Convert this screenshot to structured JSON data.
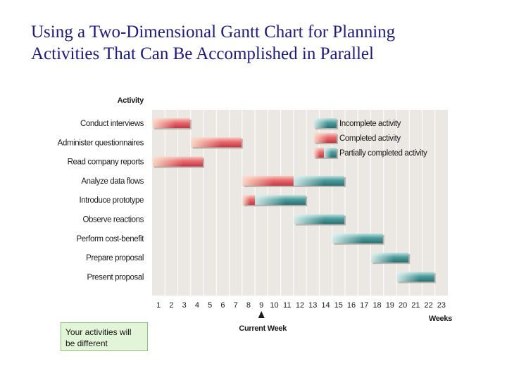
{
  "slide": {
    "title_line1": "Using a Two-Dimensional Gantt Chart for Planning",
    "title_line2": "Activities That Can Be Accomplished in Parallel",
    "note": "Your activities will be different"
  },
  "colors": {
    "completed": "#e25560",
    "incomplete": "#3d8f90",
    "grid_bg": "#ebe8e4",
    "grid_line": "#ffffff",
    "title": "#1a1a8c"
  },
  "chart_data": {
    "type": "gantt",
    "header": "Activity",
    "xlabel": "Weeks",
    "marker_label": "Current Week",
    "current_week": 9,
    "weeks": [
      "1",
      "2",
      "3",
      "4",
      "5",
      "6",
      "7",
      "8",
      "9",
      "10",
      "11",
      "12",
      "13",
      "14",
      "15",
      "16",
      "17",
      "18",
      "19",
      "20",
      "21",
      "22",
      "23"
    ],
    "activities": [
      {
        "name": "Conduct interviews",
        "start": 1,
        "end": 3,
        "completed_until": 3
      },
      {
        "name": "Administer questionnaires",
        "start": 4,
        "end": 7,
        "completed_until": 7
      },
      {
        "name": "Read company reports",
        "start": 1,
        "end": 4,
        "completed_until": 4
      },
      {
        "name": "Analyze data flows",
        "start": 8,
        "end": 15,
        "completed_until": 11
      },
      {
        "name": "Introduce prototype",
        "start": 8,
        "end": 12,
        "completed_until": 8
      },
      {
        "name": "Observe reactions",
        "start": 12,
        "end": 15,
        "completed_until": 11
      },
      {
        "name": "Perform cost-benefit",
        "start": 15,
        "end": 18,
        "completed_until": 14
      },
      {
        "name": "Prepare proposal",
        "start": 18,
        "end": 20,
        "completed_until": 17
      },
      {
        "name": "Present proposal",
        "start": 20,
        "end": 22,
        "completed_until": 19
      }
    ],
    "legend": [
      {
        "label": "Incomplete activity",
        "kind": "incomplete"
      },
      {
        "label": "Completed activity",
        "kind": "completed"
      },
      {
        "label": "Partially completed activity",
        "kind": "partial"
      }
    ]
  }
}
